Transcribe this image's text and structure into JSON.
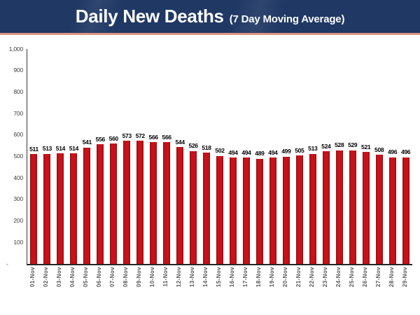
{
  "header": {
    "title": "Daily New Deaths",
    "subtitle": "(7 Day Moving Average)"
  },
  "colors": {
    "header_bg": "#1f3864",
    "accent_line": "#dd9482",
    "bar": "#c8111b",
    "bar_edge": "#8a0d0d"
  },
  "chart_data": {
    "type": "bar",
    "title": "Daily New Deaths (7 Day Moving Average)",
    "xlabel": "",
    "ylabel": "",
    "ylim": [
      0,
      1000
    ],
    "grid": false,
    "legend": null,
    "bar_color": "#c8111b",
    "categories": [
      "01-Nov",
      "02-Nov",
      "03-Nov",
      "04-Nov",
      "05-Nov",
      "06-Nov",
      "07-Nov",
      "08-Nov",
      "09-Nov",
      "10-Nov",
      "11-Nov",
      "12-Nov",
      "13-Nov",
      "14-Nov",
      "15-Nov",
      "16-Nov",
      "17-Nov",
      "18-Nov",
      "19-Nov",
      "20-Nov",
      "21-Nov",
      "22-Nov",
      "23-Nov",
      "24-Nov",
      "25-Nov",
      "26-Nov",
      "27-Nov",
      "28-Nov",
      "29-Nov"
    ],
    "values": [
      511,
      513,
      514,
      514,
      541,
      556,
      560,
      573,
      572,
      566,
      566,
      544,
      526,
      518,
      502,
      494,
      494,
      489,
      494,
      499,
      505,
      513,
      524,
      528,
      529,
      521,
      508,
      496,
      496
    ],
    "yticks": [
      {
        "label": "1,000",
        "value": 1000
      },
      {
        "label": "900",
        "value": 900
      },
      {
        "label": "800",
        "value": 800
      },
      {
        "label": "700",
        "value": 700
      },
      {
        "label": "600",
        "value": 600
      },
      {
        "label": "500",
        "value": 500
      },
      {
        "label": "400",
        "value": 400
      },
      {
        "label": "300",
        "value": 300
      },
      {
        "label": "200",
        "value": 200
      },
      {
        "label": "100",
        "value": 100
      },
      {
        "label": "-",
        "value": 0
      }
    ]
  }
}
